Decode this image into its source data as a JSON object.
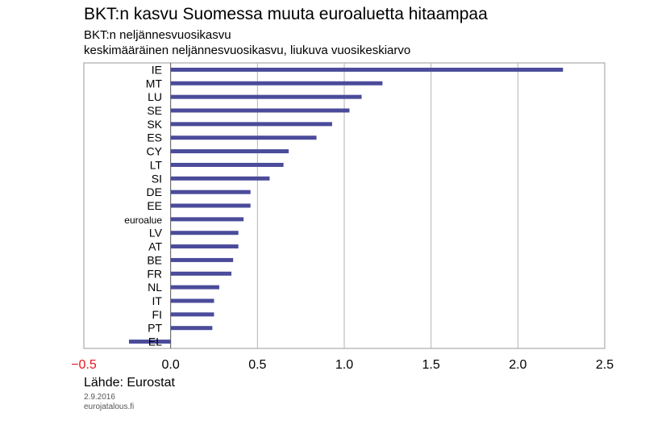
{
  "chart_data": {
    "type": "bar",
    "orientation": "horizontal",
    "title": "BKT:n kasvu Suomessa muuta euroaluetta hitaampaa",
    "subtitle_line1": "BKT:n neljännesvuosikasvu",
    "subtitle_line2": "keskimääräinen neljännesvuosikasvu, liukuva vuosikeskiarvo",
    "categories": [
      "IE",
      "MT",
      "LU",
      "SE",
      "SK",
      "ES",
      "CY",
      "LT",
      "SI",
      "DE",
      "EE",
      "euroalue",
      "LV",
      "AT",
      "BE",
      "FR",
      "NL",
      "IT",
      "FI",
      "PT",
      "EL"
    ],
    "values": [
      2.26,
      1.22,
      1.1,
      1.03,
      0.93,
      0.84,
      0.68,
      0.65,
      0.57,
      0.46,
      0.46,
      0.42,
      0.39,
      0.39,
      0.36,
      0.35,
      0.28,
      0.25,
      0.25,
      0.24,
      -0.24
    ],
    "x_ticks": [
      "−0.5",
      "0.0",
      "0.5",
      "1.0",
      "1.5",
      "2.0",
      "2.5"
    ],
    "xlim": [
      -0.5,
      2.5
    ],
    "grid": "vertical",
    "bar_color": "#4b4b9b",
    "negative_tick_color": "#e8161b",
    "xlabel": "",
    "ylabel": ""
  },
  "source": "Lähde: Eurostat",
  "date": "2.9.2016",
  "site": "eurojatalous.fi"
}
